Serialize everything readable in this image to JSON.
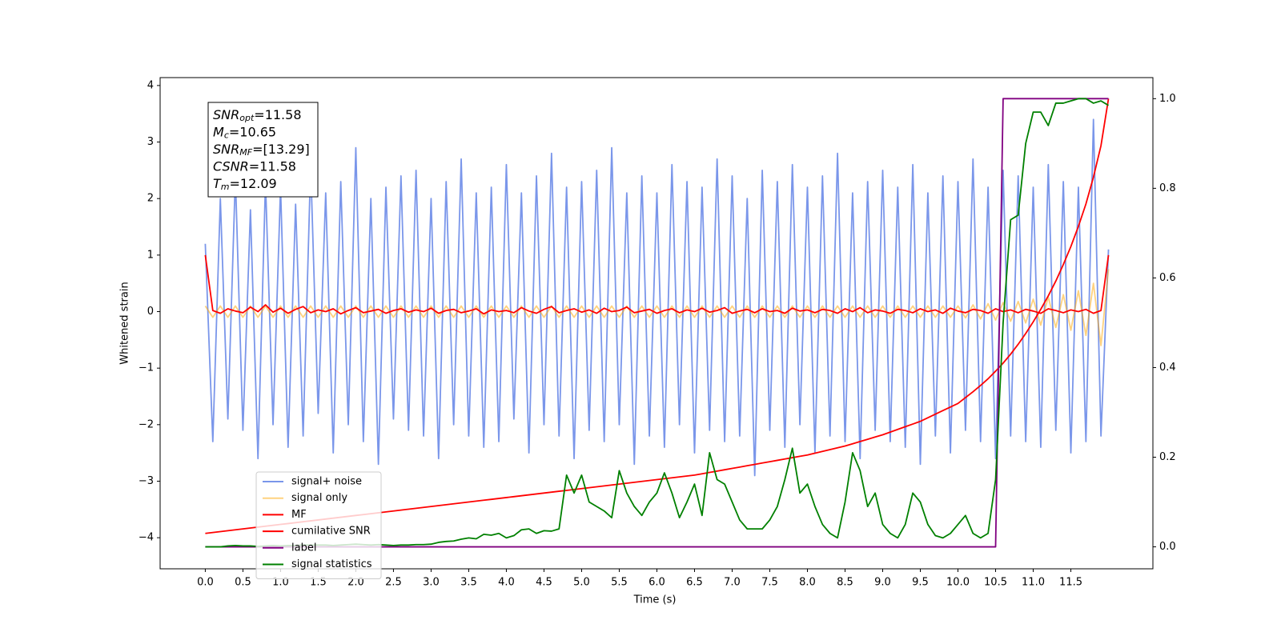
{
  "chart_data": {
    "type": "line",
    "xlabel": "Time (s)",
    "ylabel": "Whitened strain",
    "xlim": [
      -0.6,
      12.59
    ],
    "ylim": [
      -4.55,
      4.14
    ],
    "y2lim": [
      -0.049,
      1.047
    ],
    "xticks": [
      {
        "value": 0,
        "label": "0.0"
      },
      {
        "value": 0.5,
        "label": "0.5"
      },
      {
        "value": 1,
        "label": "1.0"
      },
      {
        "value": 1.5,
        "label": "1.5"
      },
      {
        "value": 2,
        "label": "2.0"
      },
      {
        "value": 2.5,
        "label": "2.5"
      },
      {
        "value": 3,
        "label": "3.0"
      },
      {
        "value": 3.5,
        "label": "3.5"
      },
      {
        "value": 4,
        "label": "4.0"
      },
      {
        "value": 4.5,
        "label": "4.5"
      },
      {
        "value": 5,
        "label": "5.0"
      },
      {
        "value": 5.5,
        "label": "5.5"
      },
      {
        "value": 6,
        "label": "6.0"
      },
      {
        "value": 6.5,
        "label": "6.5"
      },
      {
        "value": 7,
        "label": "7.0"
      },
      {
        "value": 7.5,
        "label": "7.5"
      },
      {
        "value": 8,
        "label": "8.0"
      },
      {
        "value": 8.5,
        "label": "8.5"
      },
      {
        "value": 9,
        "label": "9.0"
      },
      {
        "value": 9.5,
        "label": "9.5"
      },
      {
        "value": 10,
        "label": "10.0"
      },
      {
        "value": 10.5,
        "label": "10.5"
      },
      {
        "value": 11,
        "label": "11.0"
      },
      {
        "value": 11.5,
        "label": "11.5"
      }
    ],
    "yticks": [
      {
        "value": -4,
        "label": "−4"
      },
      {
        "value": -3,
        "label": "−3"
      },
      {
        "value": -2,
        "label": "−2"
      },
      {
        "value": -1,
        "label": "−1"
      },
      0,
      1,
      2,
      3,
      4
    ],
    "y2ticks": [
      {
        "value": 0,
        "label": "0.0"
      },
      {
        "value": 0.2,
        "label": "0.2"
      },
      {
        "value": 0.4,
        "label": "0.4"
      },
      {
        "value": 0.6,
        "label": "0.6"
      },
      {
        "value": 0.8,
        "label": "0.8"
      },
      {
        "value": 1,
        "label": "1.0"
      }
    ],
    "legend_loc": "lower left",
    "annotation_lines": [
      {
        "main": "SNR",
        "sub": "opt",
        "text": "=11.58"
      },
      {
        "main": "M",
        "sub": "c",
        "text": "=10.65"
      },
      {
        "main": "SNR",
        "sub": "MF",
        "text": "=[13.29]"
      },
      {
        "main": "CSNR",
        "text": "=11.58"
      },
      {
        "main": "T",
        "sub": "m",
        "text": "=12.09"
      }
    ],
    "x": [
      0,
      0.1,
      0.2,
      0.3,
      0.4,
      0.5,
      0.6,
      0.7,
      0.8,
      0.9,
      1,
      1.1,
      1.2,
      1.3,
      1.4,
      1.5,
      1.6,
      1.7,
      1.8,
      1.9,
      2,
      2.1,
      2.2,
      2.3,
      2.4,
      2.5,
      2.6,
      2.7,
      2.8,
      2.9,
      3,
      3.1,
      3.2,
      3.3,
      3.4,
      3.5,
      3.6,
      3.7,
      3.8,
      3.9,
      4,
      4.1,
      4.2,
      4.3,
      4.4,
      4.5,
      4.6,
      4.7,
      4.8,
      4.9,
      5,
      5.1,
      5.2,
      5.3,
      5.4,
      5.5,
      5.6,
      5.7,
      5.8,
      5.9,
      6,
      6.1,
      6.2,
      6.3,
      6.4,
      6.5,
      6.6,
      6.7,
      6.8,
      6.9,
      7,
      7.1,
      7.2,
      7.3,
      7.4,
      7.5,
      7.6,
      7.7,
      7.8,
      7.9,
      8,
      8.1,
      8.2,
      8.3,
      8.4,
      8.5,
      8.6,
      8.7,
      8.8,
      8.9,
      9,
      9.1,
      9.2,
      9.3,
      9.4,
      9.5,
      9.6,
      9.7,
      9.8,
      9.9,
      10,
      10.1,
      10.2,
      10.3,
      10.4,
      10.5,
      10.6,
      10.7,
      10.8,
      10.9,
      11,
      11.1,
      11.2,
      11.3,
      11.4,
      11.5,
      11.6,
      11.7,
      11.8,
      11.9,
      12
    ],
    "series": [
      {
        "name": "signal+ noise",
        "color": "#4169e1",
        "opacity": 0.7,
        "axis": "y",
        "values": [
          1.2,
          -2.3,
          2.0,
          -1.9,
          2.4,
          -2.1,
          1.8,
          -2.6,
          2.3,
          -2.0,
          2.2,
          -2.4,
          1.9,
          -2.2,
          2.6,
          -1.8,
          2.1,
          -2.5,
          2.3,
          -2.0,
          2.9,
          -2.3,
          2.0,
          -2.7,
          2.2,
          -1.9,
          2.4,
          -2.1,
          2.5,
          -2.2,
          2.0,
          -2.6,
          2.3,
          -2.0,
          2.7,
          -2.2,
          2.1,
          -2.4,
          2.2,
          -2.3,
          2.6,
          -1.9,
          2.1,
          -2.5,
          2.4,
          -2.0,
          2.8,
          -2.2,
          2.2,
          -2.6,
          2.3,
          -2.1,
          2.5,
          -2.3,
          2.9,
          -2.0,
          2.1,
          -2.7,
          2.4,
          -2.2,
          2.1,
          -2.4,
          2.6,
          -2.0,
          2.3,
          -2.5,
          2.2,
          -2.1,
          2.7,
          -2.3,
          2.4,
          -2.2,
          2.0,
          -2.9,
          2.5,
          -2.1,
          2.3,
          -2.4,
          2.6,
          -2.0,
          2.2,
          -2.5,
          2.4,
          -2.2,
          2.8,
          -2.3,
          2.1,
          -2.6,
          2.3,
          -2.1,
          2.5,
          -2.3,
          2.2,
          -2.4,
          2.6,
          -2.7,
          2.1,
          -2.2,
          2.4,
          -2.5,
          2.3,
          -2.1,
          2.7,
          -2.3,
          2.2,
          -2.6,
          2.5,
          -2.2,
          2.4,
          -2.3,
          2.2,
          -2.4,
          2.6,
          -2.1,
          2.3,
          -2.5,
          2.2,
          -2.3,
          3.4,
          -2.2,
          1.1
        ]
      },
      {
        "name": "signal only",
        "color": "orange",
        "opacity": 0.5,
        "axis": "y",
        "values": [
          0.1,
          -0.1,
          0.1,
          -0.1,
          0.1,
          -0.1,
          0.1,
          -0.1,
          0.1,
          -0.1,
          0.1,
          -0.1,
          0.1,
          -0.1,
          0.1,
          -0.1,
          0.1,
          -0.1,
          0.1,
          -0.1,
          0.1,
          -0.1,
          0.1,
          -0.1,
          0.1,
          -0.1,
          0.1,
          -0.1,
          0.1,
          -0.1,
          0.1,
          -0.1,
          0.1,
          -0.1,
          0.1,
          -0.1,
          0.1,
          -0.1,
          0.1,
          -0.1,
          0.1,
          -0.1,
          0.1,
          -0.1,
          0.1,
          -0.1,
          0.1,
          -0.1,
          0.1,
          -0.1,
          0.1,
          -0.1,
          0.1,
          -0.1,
          0.1,
          -0.1,
          0.1,
          -0.1,
          0.1,
          -0.1,
          0.1,
          -0.1,
          0.1,
          -0.1,
          0.1,
          -0.1,
          0.1,
          -0.1,
          0.1,
          -0.1,
          0.1,
          -0.1,
          0.1,
          -0.1,
          0.1,
          -0.1,
          0.1,
          -0.1,
          0.1,
          -0.1,
          0.1,
          -0.1,
          0.1,
          -0.1,
          0.1,
          -0.1,
          0.1,
          -0.1,
          0.1,
          -0.1,
          0.1,
          -0.1,
          0.1,
          -0.1,
          0.1,
          -0.1,
          0.1,
          -0.1,
          0.1,
          -0.1,
          0.1,
          -0.11,
          0.12,
          -0.13,
          0.14,
          -0.15,
          0.16,
          -0.17,
          0.18,
          -0.2,
          0.22,
          -0.24,
          0.26,
          -0.28,
          0.3,
          -0.33,
          0.37,
          -0.42,
          0.5,
          -0.6,
          0.75
        ]
      },
      {
        "name": "MF",
        "color": "red",
        "opacity": 1,
        "axis": "y",
        "values": [
          1.0,
          0.02,
          -0.03,
          0.05,
          0.01,
          -0.02,
          0.08,
          0.0,
          0.12,
          -0.01,
          0.06,
          -0.03,
          0.04,
          0.09,
          -0.02,
          0.03,
          0.0,
          0.05,
          -0.04,
          0.02,
          0.07,
          -0.02,
          0.01,
          0.04,
          -0.03,
          0.02,
          0.05,
          -0.01,
          0.03,
          0.0,
          0.06,
          -0.03,
          0.02,
          0.04,
          -0.02,
          0.01,
          0.05,
          -0.04,
          0.03,
          0.0,
          0.02,
          -0.02,
          0.07,
          0.01,
          -0.03,
          0.04,
          0.09,
          -0.02,
          0.02,
          0.05,
          -0.01,
          0.03,
          -0.03,
          0.06,
          0.0,
          0.02,
          0.08,
          -0.02,
          0.01,
          0.04,
          -0.03,
          0.02,
          0.05,
          -0.02,
          0.03,
          0.0,
          0.06,
          -0.01,
          0.02,
          0.07,
          -0.03,
          0.01,
          0.04,
          -0.02,
          0.05,
          0.0,
          0.02,
          -0.03,
          0.06,
          0.01,
          0.03,
          -0.02,
          0.04,
          0.02,
          -0.03,
          0.05,
          0.0,
          0.07,
          -0.02,
          0.03,
          0.01,
          -0.03,
          0.04,
          0.02,
          -0.02,
          0.05,
          0.0,
          0.03,
          -0.03,
          0.06,
          0.01,
          -0.02,
          0.04,
          0.02,
          -0.03,
          0.05,
          0.0,
          0.03,
          -0.02,
          0.04,
          0.01,
          -0.03,
          0.05,
          0.02,
          -0.02,
          0.03,
          0.0,
          0.04,
          -0.03,
          0.02,
          1.0
        ]
      },
      {
        "name": "cumilative SNR",
        "color": "red",
        "opacity": 1,
        "axis": "y2",
        "values": [
          0.03,
          0.032,
          0.034,
          0.036,
          0.038,
          0.04,
          0.042,
          0.044,
          0.046,
          0.048,
          0.05,
          0.052,
          0.054,
          0.056,
          0.058,
          0.06,
          0.062,
          0.064,
          0.066,
          0.068,
          0.07,
          0.072,
          0.074,
          0.076,
          0.078,
          0.08,
          0.082,
          0.084,
          0.086,
          0.088,
          0.09,
          0.092,
          0.094,
          0.096,
          0.098,
          0.1,
          0.102,
          0.104,
          0.106,
          0.108,
          0.11,
          0.112,
          0.114,
          0.116,
          0.118,
          0.12,
          0.122,
          0.124,
          0.126,
          0.128,
          0.13,
          0.132,
          0.134,
          0.136,
          0.138,
          0.14,
          0.142,
          0.144,
          0.146,
          0.148,
          0.15,
          0.152,
          0.154,
          0.156,
          0.158,
          0.16,
          0.163,
          0.166,
          0.169,
          0.172,
          0.175,
          0.178,
          0.181,
          0.184,
          0.187,
          0.19,
          0.193,
          0.196,
          0.199,
          0.202,
          0.205,
          0.209,
          0.213,
          0.217,
          0.221,
          0.225,
          0.23,
          0.235,
          0.24,
          0.245,
          0.25,
          0.256,
          0.262,
          0.268,
          0.274,
          0.28,
          0.288,
          0.296,
          0.304,
          0.312,
          0.32,
          0.333,
          0.346,
          0.36,
          0.375,
          0.392,
          0.41,
          0.43,
          0.452,
          0.476,
          0.502,
          0.53,
          0.56,
          0.593,
          0.63,
          0.67,
          0.715,
          0.765,
          0.825,
          0.895,
          1.0
        ]
      },
      {
        "name": "label",
        "color": "purple",
        "opacity": 1,
        "axis": "y2",
        "values": [
          0,
          0,
          0,
          0,
          0,
          0,
          0,
          0,
          0,
          0,
          0,
          0,
          0,
          0,
          0,
          0,
          0,
          0,
          0,
          0,
          0,
          0,
          0,
          0,
          0,
          0,
          0,
          0,
          0,
          0,
          0,
          0,
          0,
          0,
          0,
          0,
          0,
          0,
          0,
          0,
          0,
          0,
          0,
          0,
          0,
          0,
          0,
          0,
          0,
          0,
          0,
          0,
          0,
          0,
          0,
          0,
          0,
          0,
          0,
          0,
          0,
          0,
          0,
          0,
          0,
          0,
          0,
          0,
          0,
          0,
          0,
          0,
          0,
          0,
          0,
          0,
          0,
          0,
          0,
          0,
          0,
          0,
          0,
          0,
          0,
          0,
          0,
          0,
          0,
          0,
          0,
          0,
          0,
          0,
          0,
          0,
          0,
          0,
          0,
          0,
          0,
          0,
          0,
          0,
          0,
          0,
          1,
          1,
          1,
          1,
          1,
          1,
          1,
          1,
          1,
          1,
          1,
          1,
          1,
          1,
          1
        ]
      },
      {
        "name": "signal statistics",
        "color": "green",
        "opacity": 1,
        "axis": "y2",
        "values": [
          0.0,
          0.0,
          0.0,
          0.002,
          0.003,
          0.002,
          0.002,
          0.001,
          0.002,
          0.003,
          0.002,
          0.003,
          0.003,
          0.004,
          0.004,
          0.004,
          0.004,
          0.003,
          0.004,
          0.005,
          0.006,
          0.005,
          0.004,
          0.005,
          0.004,
          0.003,
          0.004,
          0.004,
          0.005,
          0.005,
          0.006,
          0.01,
          0.012,
          0.013,
          0.017,
          0.02,
          0.018,
          0.028,
          0.026,
          0.03,
          0.02,
          0.025,
          0.038,
          0.04,
          0.03,
          0.036,
          0.035,
          0.04,
          0.16,
          0.12,
          0.16,
          0.1,
          0.09,
          0.08,
          0.065,
          0.17,
          0.12,
          0.09,
          0.07,
          0.1,
          0.12,
          0.165,
          0.12,
          0.065,
          0.1,
          0.14,
          0.07,
          0.21,
          0.15,
          0.14,
          0.1,
          0.06,
          0.04,
          0.04,
          0.04,
          0.06,
          0.09,
          0.15,
          0.22,
          0.12,
          0.14,
          0.09,
          0.05,
          0.03,
          0.02,
          0.1,
          0.21,
          0.17,
          0.09,
          0.12,
          0.05,
          0.03,
          0.02,
          0.05,
          0.12,
          0.1,
          0.05,
          0.025,
          0.02,
          0.03,
          0.05,
          0.07,
          0.03,
          0.02,
          0.03,
          0.15,
          0.5,
          0.73,
          0.74,
          0.9,
          0.97,
          0.97,
          0.94,
          0.99,
          0.99,
          0.995,
          1.0,
          1.0,
          0.99,
          0.995,
          0.985
        ]
      }
    ]
  }
}
